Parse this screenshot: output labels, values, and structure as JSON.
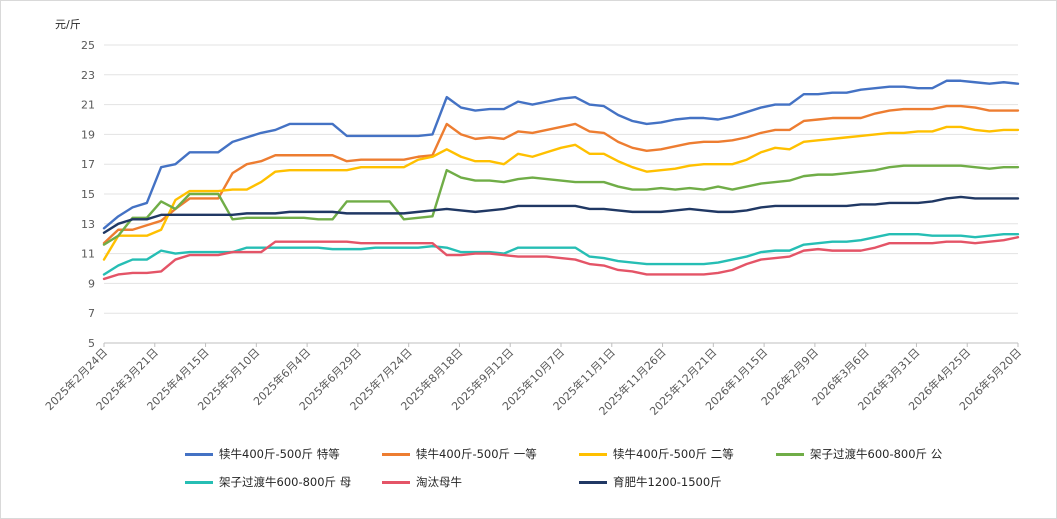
{
  "chart_data": {
    "type": "line",
    "y_unit": "元/斤",
    "ylim": [
      5,
      25
    ],
    "ytick_step": 2,
    "grid": "horizontal",
    "legend_position": "bottom",
    "x_ticks": [
      "2025年2月24日",
      "2025年3月21日",
      "2025年4月15日",
      "2025年5月10日",
      "2025年6月4日",
      "2025年6月29日",
      "2025年7月24日",
      "2025年8月18日",
      "2025年9月12日",
      "2025年10月7日",
      "2025年11月1日",
      "2025年11月26日",
      "2025年12月21日",
      "2026年1月15日",
      "2026年2月9日",
      "2026年3月6日",
      "2026年3月31日",
      "2026年4月25日",
      "2026年5月20日"
    ],
    "x_points": 65,
    "series": [
      {
        "name": "犊牛400斤-500斤 特等",
        "color": "#4472C4",
        "values": [
          12.7,
          13.5,
          14.1,
          14.4,
          16.8,
          17.0,
          17.8,
          17.8,
          17.8,
          18.5,
          18.8,
          19.1,
          19.3,
          19.7,
          19.7,
          19.7,
          19.7,
          18.9,
          18.9,
          18.9,
          18.9,
          18.9,
          18.9,
          19.0,
          21.5,
          20.8,
          20.6,
          20.7,
          20.7,
          21.2,
          21.0,
          21.2,
          21.4,
          21.5,
          21.0,
          20.9,
          20.3,
          19.9,
          19.7,
          19.8,
          20.0,
          20.1,
          20.1,
          20.0,
          20.2,
          20.5,
          20.8,
          21.0,
          21.0,
          21.7,
          21.7,
          21.8,
          21.8,
          22.0,
          22.1,
          22.2,
          22.2,
          22.1,
          22.1,
          22.6,
          22.6,
          22.5,
          22.4,
          22.5,
          22.4
        ]
      },
      {
        "name": "犊牛400斤-500斤 一等",
        "color": "#ED7D31",
        "values": [
          11.7,
          12.6,
          12.6,
          12.9,
          13.2,
          14.0,
          14.7,
          14.7,
          14.7,
          16.4,
          17.0,
          17.2,
          17.6,
          17.6,
          17.6,
          17.6,
          17.6,
          17.2,
          17.3,
          17.3,
          17.3,
          17.3,
          17.5,
          17.6,
          19.7,
          19.0,
          18.7,
          18.8,
          18.7,
          19.2,
          19.1,
          19.3,
          19.5,
          19.7,
          19.2,
          19.1,
          18.5,
          18.1,
          17.9,
          18.0,
          18.2,
          18.4,
          18.5,
          18.5,
          18.6,
          18.8,
          19.1,
          19.3,
          19.3,
          19.9,
          20.0,
          20.1,
          20.1,
          20.1,
          20.4,
          20.6,
          20.7,
          20.7,
          20.7,
          20.9,
          20.9,
          20.8,
          20.6,
          20.6,
          20.6
        ]
      },
      {
        "name": "犊牛400斤-500斤 二等",
        "color": "#FFC000",
        "values": [
          10.6,
          12.2,
          12.2,
          12.2,
          12.6,
          14.6,
          15.2,
          15.2,
          15.2,
          15.3,
          15.3,
          15.8,
          16.5,
          16.6,
          16.6,
          16.6,
          16.6,
          16.6,
          16.8,
          16.8,
          16.8,
          16.8,
          17.3,
          17.5,
          18.0,
          17.5,
          17.2,
          17.2,
          17.0,
          17.7,
          17.5,
          17.8,
          18.1,
          18.3,
          17.7,
          17.7,
          17.2,
          16.8,
          16.5,
          16.6,
          16.7,
          16.9,
          17.0,
          17.0,
          17.0,
          17.3,
          17.8,
          18.1,
          18.0,
          18.5,
          18.6,
          18.7,
          18.8,
          18.9,
          19.0,
          19.1,
          19.1,
          19.2,
          19.2,
          19.5,
          19.5,
          19.3,
          19.2,
          19.3,
          19.3
        ]
      },
      {
        "name": "架子过渡牛600-800斤 公",
        "color": "#70AD47",
        "values": [
          11.6,
          12.2,
          13.4,
          13.4,
          14.5,
          14.0,
          15.0,
          15.0,
          15.0,
          13.3,
          13.4,
          13.4,
          13.4,
          13.4,
          13.4,
          13.3,
          13.3,
          14.5,
          14.5,
          14.5,
          14.5,
          13.3,
          13.4,
          13.5,
          16.6,
          16.1,
          15.9,
          15.9,
          15.8,
          16.0,
          16.1,
          16.0,
          15.9,
          15.8,
          15.8,
          15.8,
          15.5,
          15.3,
          15.3,
          15.4,
          15.3,
          15.4,
          15.3,
          15.5,
          15.3,
          15.5,
          15.7,
          15.8,
          15.9,
          16.2,
          16.3,
          16.3,
          16.4,
          16.5,
          16.6,
          16.8,
          16.9,
          16.9,
          16.9,
          16.9,
          16.9,
          16.8,
          16.7,
          16.8,
          16.8
        ]
      },
      {
        "name": "架子过渡牛600-800斤 母",
        "color": "#26BEB4",
        "values": [
          9.6,
          10.2,
          10.6,
          10.6,
          11.2,
          11.0,
          11.1,
          11.1,
          11.1,
          11.1,
          11.4,
          11.4,
          11.4,
          11.4,
          11.4,
          11.4,
          11.3,
          11.3,
          11.3,
          11.4,
          11.4,
          11.4,
          11.4,
          11.5,
          11.4,
          11.1,
          11.1,
          11.1,
          11.0,
          11.4,
          11.4,
          11.4,
          11.4,
          11.4,
          10.8,
          10.7,
          10.5,
          10.4,
          10.3,
          10.3,
          10.3,
          10.3,
          10.3,
          10.4,
          10.6,
          10.8,
          11.1,
          11.2,
          11.2,
          11.6,
          11.7,
          11.8,
          11.8,
          11.9,
          12.1,
          12.3,
          12.3,
          12.3,
          12.2,
          12.2,
          12.2,
          12.1,
          12.2,
          12.3,
          12.3
        ]
      },
      {
        "name": "淘汰母牛",
        "color": "#E45467",
        "values": [
          9.3,
          9.6,
          9.7,
          9.7,
          9.8,
          10.6,
          10.9,
          10.9,
          10.9,
          11.1,
          11.1,
          11.1,
          11.8,
          11.8,
          11.8,
          11.8,
          11.8,
          11.8,
          11.7,
          11.7,
          11.7,
          11.7,
          11.7,
          11.7,
          10.9,
          10.9,
          11.0,
          11.0,
          10.9,
          10.8,
          10.8,
          10.8,
          10.7,
          10.6,
          10.3,
          10.2,
          9.9,
          9.8,
          9.6,
          9.6,
          9.6,
          9.6,
          9.6,
          9.7,
          9.9,
          10.3,
          10.6,
          10.7,
          10.8,
          11.2,
          11.3,
          11.2,
          11.2,
          11.2,
          11.4,
          11.7,
          11.7,
          11.7,
          11.7,
          11.8,
          11.8,
          11.7,
          11.8,
          11.9,
          12.1
        ]
      },
      {
        "name": "育肥牛1200-1500斤",
        "color": "#203864",
        "values": [
          12.4,
          13.0,
          13.3,
          13.3,
          13.6,
          13.6,
          13.6,
          13.6,
          13.6,
          13.6,
          13.7,
          13.7,
          13.7,
          13.8,
          13.8,
          13.8,
          13.8,
          13.7,
          13.7,
          13.7,
          13.7,
          13.7,
          13.8,
          13.9,
          14.0,
          13.9,
          13.8,
          13.9,
          14.0,
          14.2,
          14.2,
          14.2,
          14.2,
          14.2,
          14.0,
          14.0,
          13.9,
          13.8,
          13.8,
          13.8,
          13.9,
          14.0,
          13.9,
          13.8,
          13.8,
          13.9,
          14.1,
          14.2,
          14.2,
          14.2,
          14.2,
          14.2,
          14.2,
          14.3,
          14.3,
          14.4,
          14.4,
          14.4,
          14.5,
          14.7,
          14.8,
          14.7,
          14.7,
          14.7,
          14.7
        ]
      }
    ]
  }
}
